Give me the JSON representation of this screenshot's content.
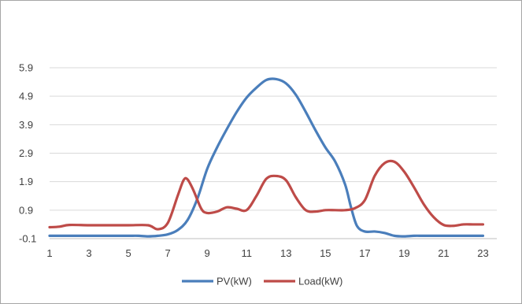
{
  "chart_data": {
    "type": "line",
    "title": "",
    "xlabel": "",
    "ylabel": "",
    "x_ticks": [
      1,
      3,
      5,
      7,
      9,
      11,
      13,
      15,
      17,
      19,
      21,
      23
    ],
    "y_ticks": [
      -0.1,
      0.9,
      1.9,
      2.9,
      3.9,
      4.9,
      5.9
    ],
    "xlim": [
      1,
      23.7
    ],
    "ylim": [
      -0.1,
      5.9
    ],
    "grid": "horizontal",
    "legend_position": "bottom",
    "series": [
      {
        "name": "PV(kW)",
        "color": "#4a7ebb",
        "x": [
          1,
          2,
          3,
          4,
          5,
          5.5,
          6,
          6.5,
          7,
          7.5,
          8,
          8.5,
          9,
          9.5,
          10,
          10.5,
          11,
          11.5,
          12,
          12.5,
          13,
          13.5,
          14,
          14.5,
          15,
          15.5,
          16,
          16.3,
          16.6,
          17,
          17.5,
          18,
          18.5,
          19,
          19.5,
          20,
          21,
          22,
          23
        ],
        "y": [
          0.0,
          0.0,
          0.0,
          0.0,
          0.0,
          0.0,
          -0.02,
          0.0,
          0.05,
          0.2,
          0.55,
          1.3,
          2.35,
          3.1,
          3.75,
          4.35,
          4.85,
          5.2,
          5.47,
          5.5,
          5.35,
          4.95,
          4.35,
          3.7,
          3.1,
          2.6,
          1.8,
          1.0,
          0.35,
          0.15,
          0.15,
          0.1,
          0.0,
          -0.02,
          0.0,
          0.0,
          0.0,
          0.0,
          0.0
        ]
      },
      {
        "name": "Load(kW)",
        "color": "#be4b48",
        "x": [
          1,
          1.5,
          2,
          3,
          4,
          5,
          6,
          6.5,
          7,
          7.5,
          7.8,
          8,
          8.3,
          8.7,
          9,
          9.5,
          10,
          10.5,
          11,
          11.5,
          12,
          12.5,
          13,
          13.5,
          14,
          14.5,
          15,
          15.5,
          16,
          16.5,
          17,
          17.5,
          18,
          18.5,
          19,
          19.5,
          20,
          20.5,
          21,
          21.5,
          22,
          22.5,
          23
        ],
        "y": [
          0.3,
          0.32,
          0.38,
          0.37,
          0.37,
          0.37,
          0.37,
          0.23,
          0.45,
          1.4,
          1.95,
          1.98,
          1.6,
          0.95,
          0.8,
          0.85,
          1.0,
          0.95,
          0.9,
          1.4,
          2.0,
          2.1,
          1.95,
          1.35,
          0.9,
          0.85,
          0.9,
          0.9,
          0.9,
          0.97,
          1.25,
          2.1,
          2.55,
          2.6,
          2.25,
          1.7,
          1.1,
          0.65,
          0.38,
          0.35,
          0.4,
          0.4,
          0.4
        ]
      }
    ]
  }
}
